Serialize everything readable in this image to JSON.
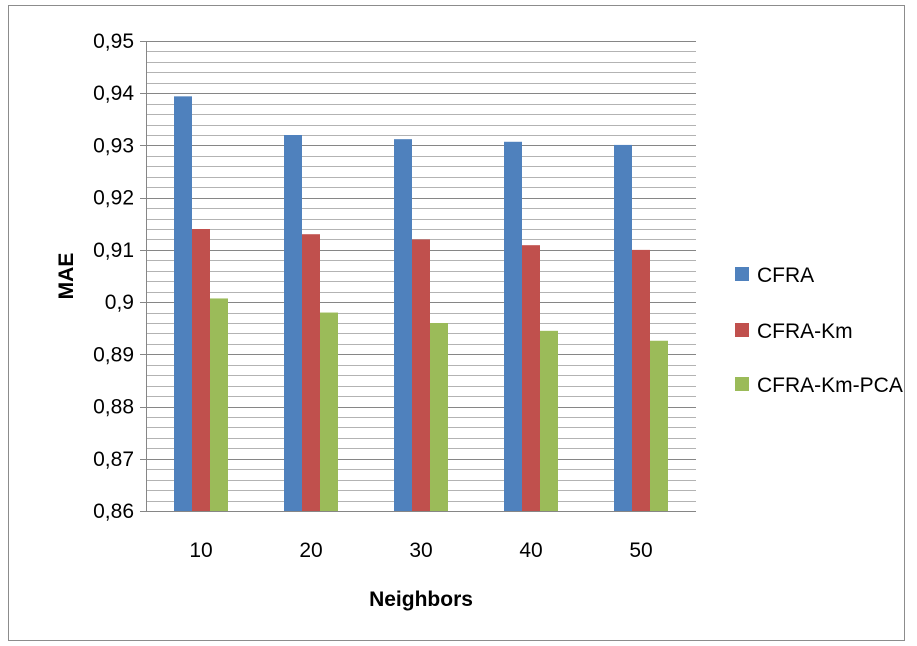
{
  "chart_data": {
    "type": "bar",
    "xlabel": "Neighbors",
    "ylabel": "MAE",
    "categories": [
      "10",
      "20",
      "30",
      "40",
      "50"
    ],
    "series": [
      {
        "name": "CFRA",
        "color": "#4F81BD",
        "values": [
          0.9394,
          0.932,
          0.9312,
          0.9307,
          0.9301
        ]
      },
      {
        "name": "CFRA-Km",
        "color": "#C0504D",
        "values": [
          0.914,
          0.913,
          0.912,
          0.9109,
          0.91
        ]
      },
      {
        "name": "CFRA-Km-PCA",
        "color": "#9BBB59",
        "values": [
          0.9007,
          0.898,
          0.896,
          0.8945,
          0.8926
        ]
      }
    ],
    "ylim": [
      0.86,
      0.95
    ],
    "yticks": [
      "0,86",
      "0,87",
      "0,88",
      "0,89",
      "0,9",
      "0,91",
      "0,92",
      "0,93",
      "0,94",
      "0,95"
    ],
    "grid": true,
    "legend_position": "right"
  }
}
